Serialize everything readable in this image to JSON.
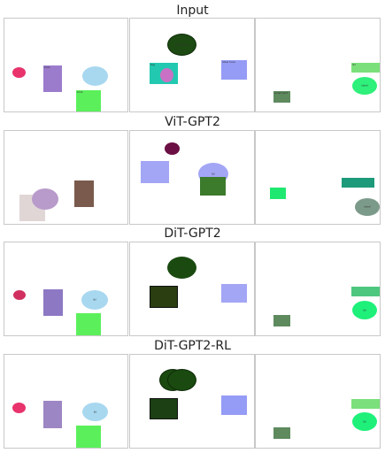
{
  "rows": [
    {
      "title": "Input",
      "panels": [
        {
          "shapes": [
            {
              "kind": "ellipse",
              "color": "#e8336d"
            },
            {
              "kind": "rect",
              "color": "#9b7ccc",
              "text": "blob"
            },
            {
              "kind": "ellipse",
              "color": "#a8d8f0"
            },
            {
              "kind": "rect",
              "color": "#5bf05b",
              "text": "blob"
            }
          ]
        },
        {
          "shapes": [
            {
              "kind": "ellipse",
              "color": "#1c4a12",
              "stroke": "#0d2a08",
              "text": "word here"
            },
            {
              "kind": "rect",
              "color": "#22c9b0",
              "text": "tag"
            },
            {
              "kind": "ellipse",
              "color": "#c971c4"
            },
            {
              "kind": "rect",
              "color": "#959cf5",
              "text": "label here"
            }
          ]
        },
        {
          "shapes": [
            {
              "kind": "rect",
              "color": "#7be07b",
              "text": "lbl"
            },
            {
              "kind": "ellipse",
              "color": "#2ef07a",
              "text": "label"
            },
            {
              "kind": "rect",
              "color": "#5e8a5e",
              "text": "small text"
            }
          ]
        }
      ]
    },
    {
      "title": "ViT-GPT2",
      "panels": [
        {
          "shapes": [
            {
              "kind": "rect",
              "color": "#e0d6d6"
            },
            {
              "kind": "ellipse",
              "color": "#b89acb"
            },
            {
              "kind": "rect",
              "color": "#7a5a4c"
            }
          ]
        },
        {
          "shapes": [
            {
              "kind": "ellipse",
              "color": "#6b0f44"
            },
            {
              "kind": "rect",
              "color": "#a3a5f5"
            },
            {
              "kind": "ellipse",
              "color": "#a3a5f5",
              "text": "lbl"
            },
            {
              "kind": "rect",
              "color": "#3c7a2c"
            }
          ]
        },
        {
          "shapes": [
            {
              "kind": "rect",
              "color": "#1fe870"
            },
            {
              "kind": "rect",
              "color": "#1d9a7a"
            },
            {
              "kind": "ellipse",
              "color": "#7c9a8a",
              "text": "label"
            }
          ]
        }
      ]
    },
    {
      "title": "DiT-GPT2",
      "panels": [
        {
          "shapes": [
            {
              "kind": "ellipse",
              "color": "#d03060"
            },
            {
              "kind": "rect",
              "color": "#8d78c4"
            },
            {
              "kind": "ellipse",
              "color": "#a8d8f0",
              "text": "lbl"
            },
            {
              "kind": "rect",
              "color": "#5bf05b"
            }
          ]
        },
        {
          "shapes": [
            {
              "kind": "ellipse",
              "color": "#1a4a10",
              "text": "lbl"
            },
            {
              "kind": "rect",
              "color": "#2a3e12",
              "stroke": "#111"
            },
            {
              "kind": "rect",
              "color": "#a3a5f5"
            }
          ]
        },
        {
          "shapes": [
            {
              "kind": "rect",
              "color": "#4ec77e"
            },
            {
              "kind": "ellipse",
              "color": "#1ef07a",
              "text": "lbl"
            },
            {
              "kind": "rect",
              "color": "#5e8a5e"
            }
          ]
        }
      ]
    },
    {
      "title": "DiT-GPT2-RL",
      "panels": [
        {
          "shapes": [
            {
              "kind": "ellipse",
              "color": "#e8336d"
            },
            {
              "kind": "rect",
              "color": "#9d86c4"
            },
            {
              "kind": "ellipse",
              "color": "#a8d8f0",
              "text": "lbl"
            },
            {
              "kind": "rect",
              "color": "#5bf05b"
            }
          ]
        },
        {
          "shapes": [
            {
              "kind": "ellipse",
              "color": "#1a4a10",
              "stroke": "#0d2a08"
            },
            {
              "kind": "ellipse",
              "color": "#1a4a10",
              "stroke": "#0d2a08",
              "text": "lbl"
            },
            {
              "kind": "rect",
              "color": "#1c3f14",
              "stroke": "#111"
            },
            {
              "kind": "rect",
              "color": "#959cf5"
            }
          ]
        },
        {
          "shapes": [
            {
              "kind": "rect",
              "color": "#7be07b"
            },
            {
              "kind": "ellipse",
              "color": "#1ef07a",
              "text": "lbl"
            },
            {
              "kind": "rect",
              "color": "#5e8a5e"
            }
          ]
        }
      ]
    }
  ]
}
